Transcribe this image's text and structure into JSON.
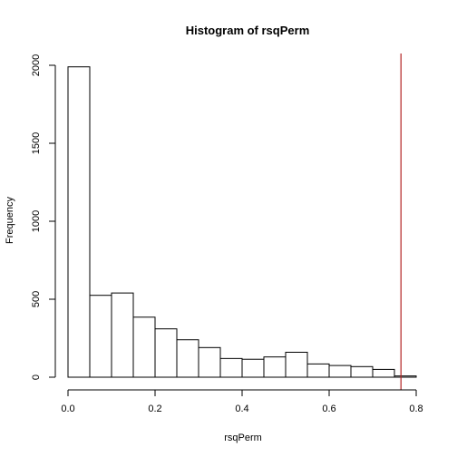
{
  "chart_data": {
    "type": "bar",
    "title": "Histogram of rsqPerm",
    "xlabel": "rsqPerm",
    "ylabel": "Frequency",
    "xlim": [
      0,
      0.8
    ],
    "ylim": [
      0,
      2000
    ],
    "xticks": [
      "0.0",
      "0.2",
      "0.4",
      "0.6",
      "0.8"
    ],
    "yticks": [
      "0",
      "500",
      "1000",
      "1500",
      "2000"
    ],
    "bins": [
      {
        "x0": 0.0,
        "x1": 0.05,
        "count": 1990
      },
      {
        "x0": 0.05,
        "x1": 0.1,
        "count": 525
      },
      {
        "x0": 0.1,
        "x1": 0.15,
        "count": 540
      },
      {
        "x0": 0.15,
        "x1": 0.2,
        "count": 385
      },
      {
        "x0": 0.2,
        "x1": 0.25,
        "count": 310
      },
      {
        "x0": 0.25,
        "x1": 0.3,
        "count": 240
      },
      {
        "x0": 0.3,
        "x1": 0.35,
        "count": 190
      },
      {
        "x0": 0.35,
        "x1": 0.4,
        "count": 120
      },
      {
        "x0": 0.4,
        "x1": 0.45,
        "count": 115
      },
      {
        "x0": 0.45,
        "x1": 0.5,
        "count": 130
      },
      {
        "x0": 0.5,
        "x1": 0.55,
        "count": 160
      },
      {
        "x0": 0.55,
        "x1": 0.6,
        "count": 85
      },
      {
        "x0": 0.6,
        "x1": 0.65,
        "count": 75
      },
      {
        "x0": 0.65,
        "x1": 0.7,
        "count": 68
      },
      {
        "x0": 0.7,
        "x1": 0.75,
        "count": 50
      },
      {
        "x0": 0.75,
        "x1": 0.8,
        "count": 8
      }
    ],
    "reference_line": {
      "x": 0.765,
      "color": "#b22222"
    },
    "grid": false,
    "bar_fill": "#ffffff",
    "bar_stroke": "#000000"
  }
}
